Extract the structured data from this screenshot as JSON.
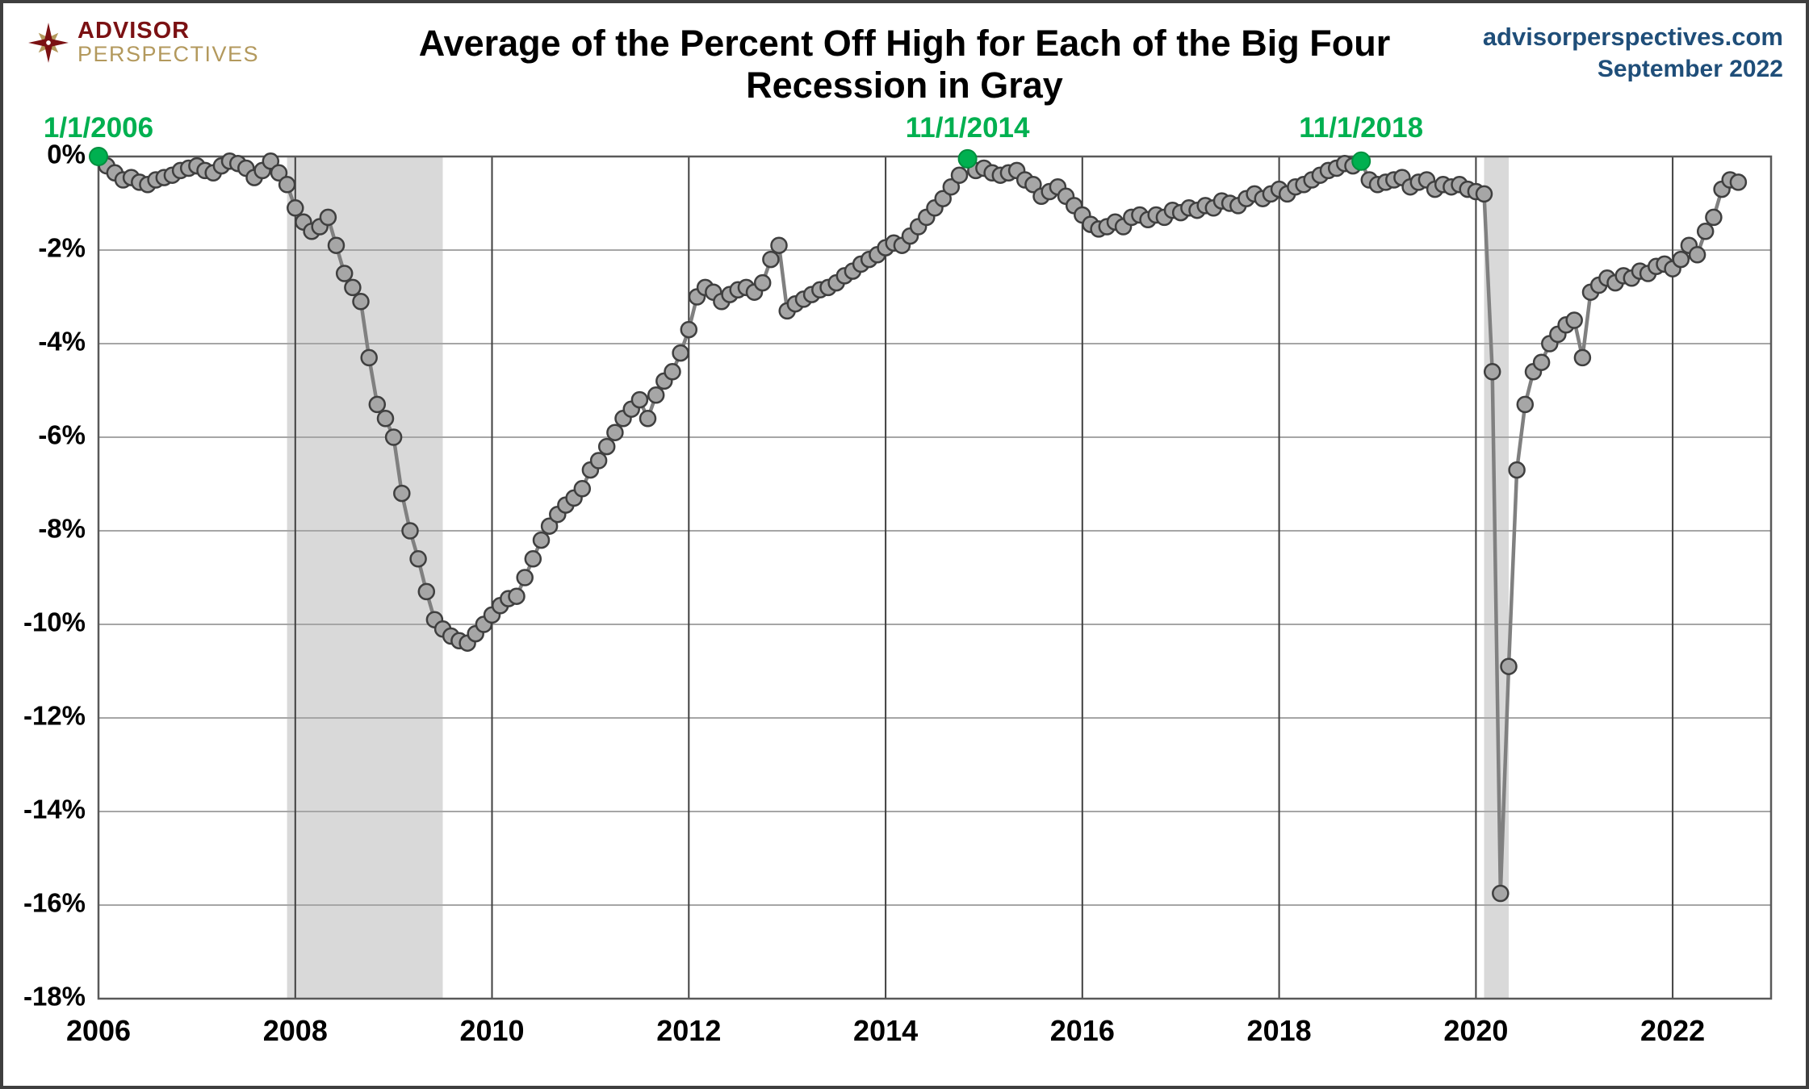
{
  "header": {
    "logo_line1": "ADVISOR",
    "logo_line2": "PERSPECTIVES",
    "title_line1": "Average of the Percent Off High for Each of the Big Four",
    "title_line2": "Recession in Gray",
    "site": "advisorperspectives.com",
    "date": "September 2022"
  },
  "colors": {
    "line": "#808080",
    "marker_fill": "#a6a6a6",
    "marker_stroke": "#3f3f3f",
    "highlight": "#00b050",
    "recession": "#d9d9d9",
    "h_grid": "#a6a6a6",
    "v_grid": "#404040",
    "frame": "#595959",
    "axis_text": "#000000",
    "title_text": "#000000",
    "site_text": "#1f4e79",
    "logo_red": "#7b1113",
    "logo_gold": "#b3995d"
  },
  "chart_data": {
    "type": "line",
    "title": "Average of the Percent Off High for Each of the Big Four",
    "subtitle": "Recession in Gray",
    "xlabel": "",
    "ylabel": "",
    "x_range": [
      2006,
      2023
    ],
    "y_range": [
      -18,
      0
    ],
    "grid": true,
    "legend_position": "none",
    "y_ticks": [
      {
        "v": 0,
        "label": "0%"
      },
      {
        "v": -2,
        "label": "-2%"
      },
      {
        "v": -4,
        "label": "-4%"
      },
      {
        "v": -6,
        "label": "-6%"
      },
      {
        "v": -8,
        "label": "-8%"
      },
      {
        "v": -10,
        "label": "-10%"
      },
      {
        "v": -12,
        "label": "-12%"
      },
      {
        "v": -14,
        "label": "-14%"
      },
      {
        "v": -16,
        "label": "-16%"
      },
      {
        "v": -18,
        "label": "-18%"
      }
    ],
    "x_ticks": [
      {
        "v": 2006,
        "label": "2006"
      },
      {
        "v": 2008,
        "label": "2008"
      },
      {
        "v": 2010,
        "label": "2010"
      },
      {
        "v": 2012,
        "label": "2012"
      },
      {
        "v": 2014,
        "label": "2014"
      },
      {
        "v": 2016,
        "label": "2016"
      },
      {
        "v": 2018,
        "label": "2018"
      },
      {
        "v": 2020,
        "label": "2020"
      },
      {
        "v": 2022,
        "label": "2022"
      }
    ],
    "recessions": [
      {
        "start": 2007.917,
        "end": 2009.5
      },
      {
        "start": 2020.083,
        "end": 2020.333
      }
    ],
    "series": {
      "name": "Big Four Average Percent Off High",
      "start_year": 2006,
      "frequency": "monthly",
      "values": [
        0.0,
        -0.2,
        -0.35,
        -0.5,
        -0.45,
        -0.55,
        -0.6,
        -0.5,
        -0.45,
        -0.4,
        -0.3,
        -0.25,
        -0.2,
        -0.3,
        -0.35,
        -0.2,
        -0.1,
        -0.15,
        -0.25,
        -0.45,
        -0.3,
        -0.1,
        -0.35,
        -0.6,
        -1.1,
        -1.4,
        -1.6,
        -1.5,
        -1.3,
        -1.9,
        -2.5,
        -2.8,
        -3.1,
        -4.3,
        -5.3,
        -5.6,
        -6.0,
        -7.2,
        -8.0,
        -8.6,
        -9.3,
        -9.9,
        -10.1,
        -10.25,
        -10.35,
        -10.4,
        -10.2,
        -10.0,
        -9.8,
        -9.6,
        -9.45,
        -9.4,
        -9.0,
        -8.6,
        -8.2,
        -7.9,
        -7.65,
        -7.45,
        -7.3,
        -7.1,
        -6.7,
        -6.5,
        -6.2,
        -5.9,
        -5.6,
        -5.4,
        -5.2,
        -5.6,
        -5.1,
        -4.8,
        -4.6,
        -4.2,
        -3.7,
        -3.0,
        -2.8,
        -2.9,
        -3.1,
        -2.95,
        -2.85,
        -2.8,
        -2.9,
        -2.7,
        -2.2,
        -1.9,
        -3.3,
        -3.15,
        -3.05,
        -2.95,
        -2.85,
        -2.8,
        -2.7,
        -2.55,
        -2.45,
        -2.3,
        -2.2,
        -2.1,
        -1.95,
        -1.85,
        -1.9,
        -1.7,
        -1.5,
        -1.3,
        -1.1,
        -0.9,
        -0.65,
        -0.4,
        -0.05,
        -0.3,
        -0.25,
        -0.35,
        -0.4,
        -0.35,
        -0.3,
        -0.5,
        -0.6,
        -0.85,
        -0.75,
        -0.65,
        -0.85,
        -1.05,
        -1.25,
        -1.45,
        -1.55,
        -1.5,
        -1.4,
        -1.5,
        -1.3,
        -1.25,
        -1.35,
        -1.25,
        -1.3,
        -1.15,
        -1.2,
        -1.1,
        -1.15,
        -1.05,
        -1.1,
        -0.95,
        -1.0,
        -1.05,
        -0.9,
        -0.8,
        -0.9,
        -0.8,
        -0.7,
        -0.8,
        -0.65,
        -0.6,
        -0.5,
        -0.4,
        -0.3,
        -0.25,
        -0.15,
        -0.2,
        -0.1,
        -0.5,
        -0.6,
        -0.55,
        -0.5,
        -0.45,
        -0.65,
        -0.55,
        -0.5,
        -0.7,
        -0.6,
        -0.65,
        -0.6,
        -0.7,
        -0.75,
        -0.8,
        -4.6,
        -15.75,
        -10.9,
        -6.7,
        -5.3,
        -4.6,
        -4.4,
        -4.0,
        -3.8,
        -3.6,
        -3.5,
        -4.3,
        -2.9,
        -2.75,
        -2.6,
        -2.7,
        -2.55,
        -2.6,
        -2.45,
        -2.5,
        -2.35,
        -2.3,
        -2.4,
        -2.2,
        -1.9,
        -2.1,
        -1.6,
        -1.3,
        -0.7,
        -0.5,
        -0.55
      ]
    },
    "highlights": [
      {
        "index": 0,
        "label": "1/1/2006"
      },
      {
        "index": 106,
        "label": "11/1/2014"
      },
      {
        "index": 154,
        "label": "11/1/2018"
      }
    ]
  }
}
